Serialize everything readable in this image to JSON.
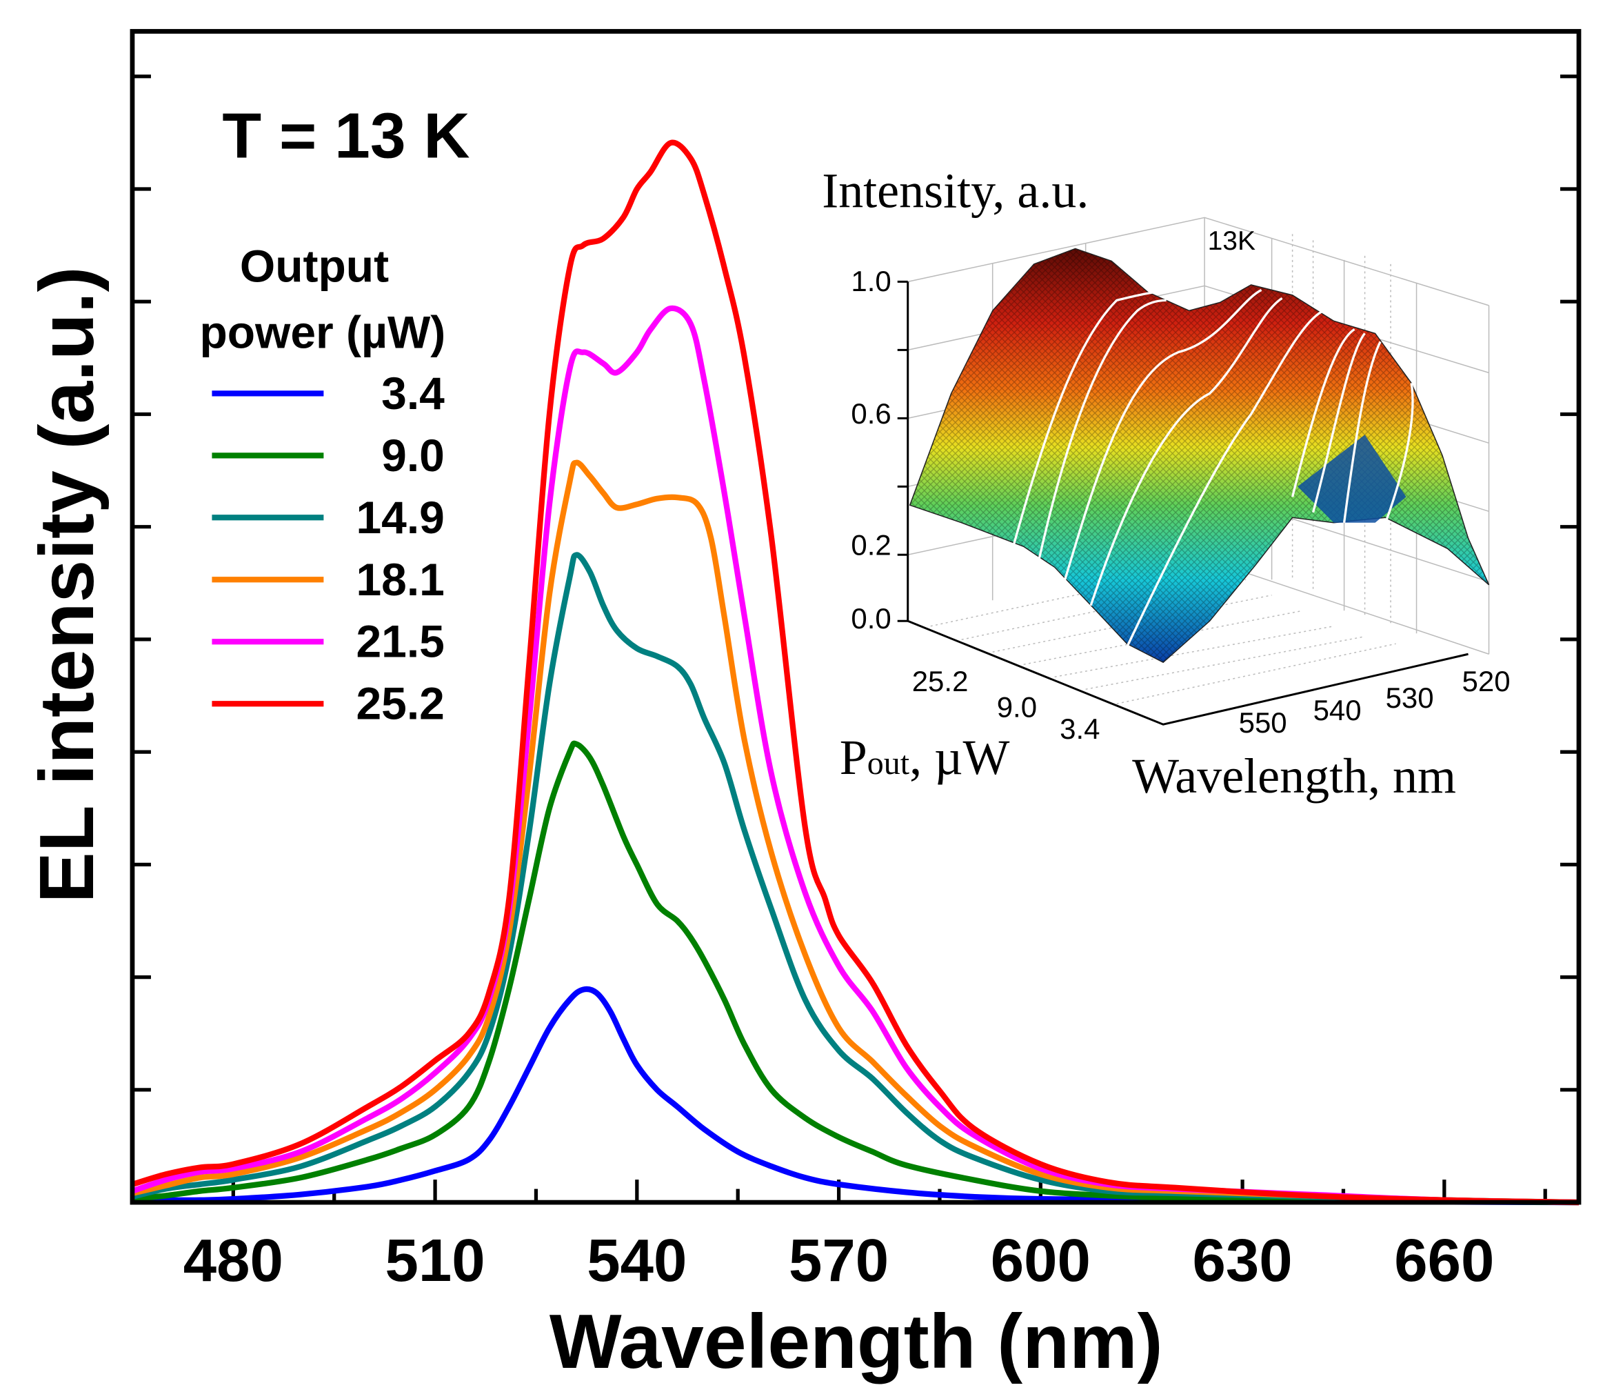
{
  "chart_data": [
    {
      "type": "line",
      "title": "",
      "annotation": "T = 13 K",
      "xlabel": "Wavelength (nm)",
      "ylabel": "EL intensity (a.u.)",
      "xlim": [
        465,
        680
      ],
      "ylim": [
        0,
        10.4
      ],
      "x_ticks": [
        480,
        510,
        540,
        570,
        600,
        630,
        660
      ],
      "x_minor_step": 15,
      "y_tick_labels_shown": false,
      "y_tick_step": 1,
      "grid": false,
      "legend": {
        "title_line1": "Output",
        "title_line2": "power (µW)",
        "placement": "top-left"
      },
      "series": [
        {
          "name": "3.4",
          "color": "#0000ff",
          "x": [
            465,
            470,
            475,
            480,
            490,
            500,
            505,
            510,
            515,
            518,
            521,
            524,
            527,
            530,
            532,
            534,
            536,
            538,
            540,
            543,
            546,
            550,
            555,
            560,
            565,
            570,
            580,
            590,
            600,
            620,
            640,
            680
          ],
          "y": [
            0.02,
            0.02,
            0.02,
            0.03,
            0.07,
            0.14,
            0.2,
            0.28,
            0.38,
            0.55,
            0.85,
            1.2,
            1.55,
            1.8,
            1.89,
            1.86,
            1.7,
            1.45,
            1.22,
            1.0,
            0.85,
            0.65,
            0.45,
            0.32,
            0.22,
            0.16,
            0.09,
            0.05,
            0.03,
            0.02,
            0.01,
            0.0
          ]
        },
        {
          "name": "9.0",
          "color": "#008000",
          "x": [
            465,
            470,
            475,
            480,
            490,
            500,
            505,
            510,
            515,
            518,
            521,
            524,
            527,
            530,
            531,
            533,
            535,
            538,
            540,
            543,
            546,
            548,
            550,
            553,
            556,
            560,
            565,
            570,
            575,
            580,
            590,
            600,
            610,
            620,
            640,
            660,
            680
          ],
          "y": [
            0.03,
            0.06,
            0.1,
            0.13,
            0.22,
            0.38,
            0.48,
            0.6,
            0.85,
            1.25,
            1.9,
            2.7,
            3.5,
            4.0,
            4.07,
            3.95,
            3.7,
            3.25,
            3.0,
            2.65,
            2.5,
            2.35,
            2.15,
            1.8,
            1.4,
            1.0,
            0.75,
            0.58,
            0.45,
            0.33,
            0.2,
            0.1,
            0.06,
            0.04,
            0.03,
            0.01,
            0.0
          ]
        },
        {
          "name": "14.9",
          "color": "#008080",
          "x": [
            465,
            470,
            475,
            480,
            490,
            500,
            505,
            510,
            515,
            518,
            521,
            524,
            527,
            530,
            531,
            533,
            535,
            537,
            540,
            543,
            546,
            548,
            550,
            553,
            556,
            560,
            565,
            570,
            575,
            580,
            585,
            590,
            600,
            610,
            620,
            640,
            660,
            680
          ],
          "y": [
            0.05,
            0.12,
            0.16,
            0.2,
            0.32,
            0.55,
            0.68,
            0.85,
            1.15,
            1.5,
            2.2,
            3.3,
            4.6,
            5.55,
            5.75,
            5.6,
            5.3,
            5.08,
            4.92,
            4.85,
            4.76,
            4.6,
            4.3,
            3.9,
            3.3,
            2.6,
            1.8,
            1.35,
            1.1,
            0.8,
            0.55,
            0.4,
            0.2,
            0.1,
            0.08,
            0.05,
            0.02,
            0.0
          ]
        },
        {
          "name": "18.1",
          "color": "#ff8000",
          "x": [
            465,
            470,
            475,
            480,
            490,
            500,
            505,
            510,
            515,
            518,
            521,
            524,
            527,
            530,
            531,
            533,
            535,
            537,
            540,
            543,
            546,
            549,
            551,
            553,
            556,
            560,
            565,
            570,
            575,
            580,
            585,
            590,
            600,
            610,
            620,
            640,
            660,
            680
          ],
          "y": [
            0.08,
            0.15,
            0.22,
            0.25,
            0.4,
            0.65,
            0.8,
            1.0,
            1.3,
            1.65,
            2.4,
            3.8,
            5.4,
            6.4,
            6.57,
            6.45,
            6.3,
            6.17,
            6.2,
            6.25,
            6.26,
            6.2,
            5.9,
            5.2,
            4.1,
            3.1,
            2.2,
            1.55,
            1.25,
            0.95,
            0.68,
            0.5,
            0.25,
            0.13,
            0.1,
            0.06,
            0.02,
            0.0
          ]
        },
        {
          "name": "21.5",
          "color": "#ff00ff",
          "x": [
            465,
            470,
            475,
            480,
            490,
            500,
            505,
            510,
            515,
            518,
            521,
            524,
            527,
            530,
            532,
            535,
            537,
            540,
            542,
            545,
            548,
            550,
            553,
            556,
            560,
            565,
            570,
            575,
            580,
            585,
            590,
            600,
            610,
            620,
            640,
            660,
            680
          ],
          "y": [
            0.1,
            0.2,
            0.27,
            0.3,
            0.45,
            0.75,
            0.92,
            1.15,
            1.45,
            1.8,
            2.6,
            4.3,
            6.2,
            7.4,
            7.55,
            7.45,
            7.37,
            7.55,
            7.75,
            7.94,
            7.8,
            7.3,
            6.3,
            5.2,
            3.8,
            2.75,
            2.1,
            1.7,
            1.2,
            0.85,
            0.6,
            0.3,
            0.16,
            0.12,
            0.07,
            0.02,
            0.0
          ]
        },
        {
          "name": "25.2",
          "color": "#ff0000",
          "x": [
            465,
            470,
            475,
            480,
            490,
            500,
            505,
            510,
            515,
            518,
            521,
            524,
            527,
            530,
            532,
            535,
            538,
            540,
            542,
            545,
            548,
            550,
            553,
            556,
            560,
            565,
            568,
            570,
            575,
            580,
            585,
            590,
            600,
            610,
            620,
            640,
            660,
            680
          ],
          "y": [
            0.16,
            0.25,
            0.31,
            0.34,
            0.52,
            0.85,
            1.03,
            1.26,
            1.5,
            1.86,
            2.7,
            4.8,
            7.0,
            8.3,
            8.5,
            8.56,
            8.75,
            9.0,
            9.15,
            9.41,
            9.27,
            8.95,
            8.3,
            7.5,
            5.9,
            3.33,
            2.69,
            2.37,
            1.95,
            1.4,
            0.99,
            0.66,
            0.34,
            0.18,
            0.13,
            0.06,
            0.02,
            0.0
          ]
        }
      ]
    },
    {
      "type": "surface3d",
      "inset": true,
      "zlabel": "Intensity, a.u.",
      "annotation": "13K",
      "z_ticks": [
        "1.0",
        "0.6",
        "0.2",
        "0.0"
      ],
      "ylabel_main": "P",
      "ylabel_sub": "out",
      "ylabel_rest": ", µW",
      "y_ticks": [
        "25.2",
        "9.0",
        "3.4"
      ],
      "xlabel": "Wavelength, nm",
      "x_ticks": [
        "550",
        "540",
        "530",
        "520"
      ],
      "colormap": [
        "#0a3fa8",
        "#17c8d8",
        "#5fd05a",
        "#e8e020",
        "#f07010",
        "#d02010",
        "#5a0a05"
      ]
    }
  ]
}
